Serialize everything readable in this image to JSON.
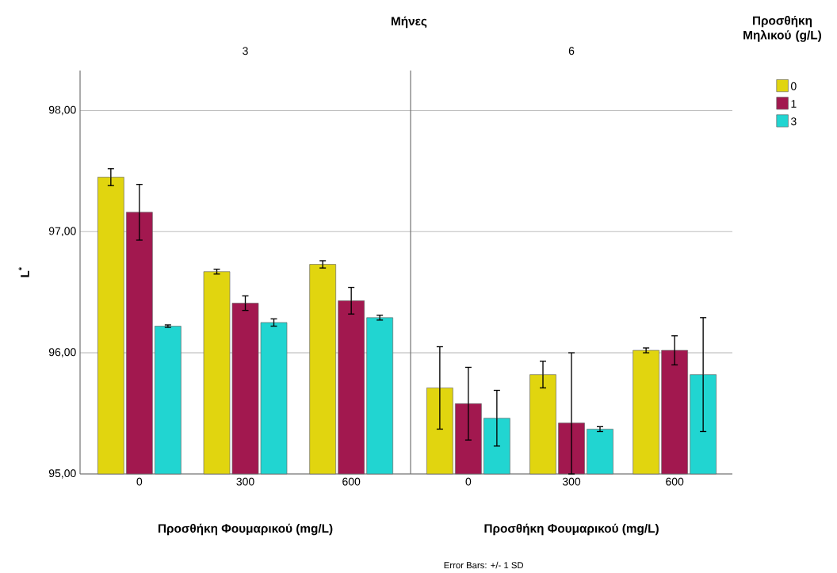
{
  "chart_data": [
    {
      "type": "bar",
      "title": "3",
      "xlabel": "Προσθήκη Φουμαρικού (mg/L)",
      "ylabel": "L$^{*}$",
      "annotations": [
        "Μήνες"
      ],
      "categories": [
        "0",
        "300",
        "600"
      ],
      "series": [
        {
          "color": "#e1d50f",
          "values": [
            97.45,
            96.67,
            96.73
          ],
          "errors": [
            0.07,
            0.02,
            0.03
          ]
        },
        {
          "color": "#a2184f",
          "values": [
            97.16,
            96.41,
            96.43
          ],
          "errors": [
            0.23,
            0.06,
            0.11
          ]
        },
        {
          "color": "#21d5d1",
          "values": [
            96.22,
            96.25,
            96.29
          ],
          "errors": [
            0.01,
            0.03,
            0.02
          ]
        }
      ],
      "ylim": [
        95,
        98.33
      ],
      "yticks": [
        {
          "value": 95,
          "label": "95,00"
        },
        {
          "value": 96,
          "label": "96,00"
        },
        {
          "value": 97,
          "label": "97,00"
        },
        {
          "value": 98,
          "label": "98,00"
        }
      ],
      "grid": "y"
    },
    {
      "type": "bar",
      "title": "6",
      "xlabel": "Προσθήκη Φουμαρικού (mg/L)",
      "annotations": [
        "Error Bars: +/- 1 SD"
      ],
      "legend_title": "Προσθήκη Μηλικού (g/L)",
      "legend": "right",
      "categories": [
        "0",
        "300",
        "600"
      ],
      "series": [
        {
          "name": "0",
          "color": "#e1d50f",
          "values": [
            95.71,
            95.82,
            96.02
          ],
          "errors": [
            0.34,
            0.11,
            0.02
          ]
        },
        {
          "name": "1",
          "color": "#a2184f",
          "values": [
            95.58,
            95.42,
            96.02
          ],
          "errors": [
            0.3,
            [
              95.0,
              96.0
            ],
            0.12
          ]
        },
        {
          "name": "3",
          "color": "#21d5d1",
          "values": [
            95.46,
            95.37,
            95.82
          ],
          "errors": [
            0.23,
            0.02,
            0.47
          ]
        }
      ],
      "ylim": [
        95,
        98.33
      ],
      "yticks": [
        95,
        96,
        97,
        98
      ],
      "tick_labels": "x",
      "grid": "y"
    }
  ]
}
